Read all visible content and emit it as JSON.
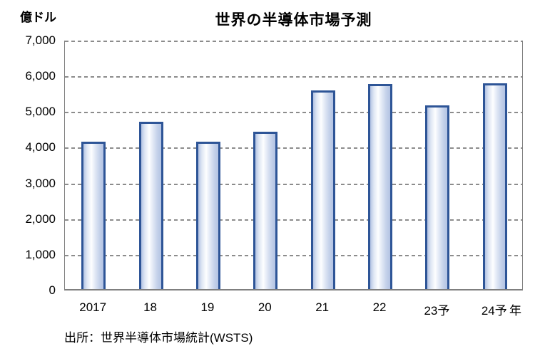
{
  "chart": {
    "unit_label": "億ドル",
    "title": "世界の半導体市場予測",
    "x_axis_unit": "年",
    "source": "出所：世界半導体市場統計(WSTS)"
  },
  "chart_data": {
    "type": "bar",
    "title": "世界の半導体市場予測",
    "categories": [
      "2017",
      "18",
      "19",
      "20",
      "21",
      "22",
      "23予",
      "24予"
    ],
    "values": [
      4122,
      4688,
      4123,
      4404,
      5559,
      5735,
      5151,
      5760
    ],
    "xlabel": "年",
    "ylabel": "億ドル",
    "ylim": [
      0,
      7000
    ],
    "ytick_interval": 1000,
    "ytick_labels": [
      "0",
      "1,000",
      "2,000",
      "3,000",
      "4,000",
      "5,000",
      "6,000",
      "7,000"
    ],
    "grid": "horizontal-dashed",
    "legend": "none",
    "source": "出所：世界半導体市場統計(WSTS)",
    "colors": {
      "bar_border": "#2e5597",
      "bar_fill_light": "#b3c3e3",
      "bar_fill_highlight": "#fdfeff",
      "gridline": "#8c8c8c",
      "plot_frame": "#808080",
      "text": "#000000",
      "background": "#ffffff"
    }
  }
}
